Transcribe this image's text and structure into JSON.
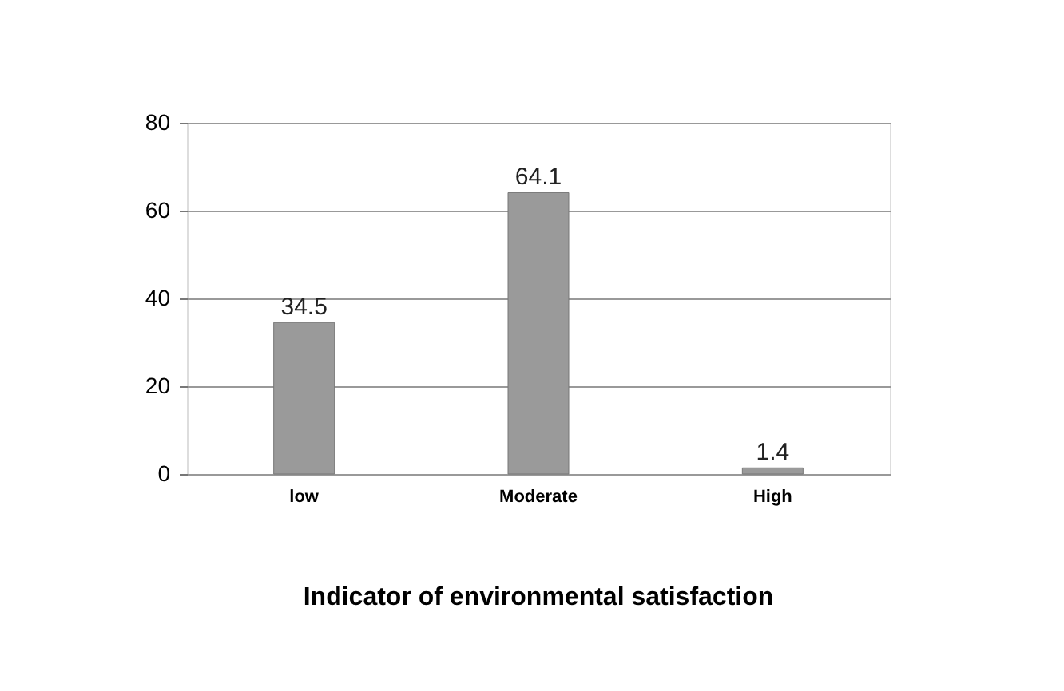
{
  "chart_data": {
    "type": "bar",
    "title": "Indicator of environmental satisfaction",
    "categories": [
      "low",
      "Moderate",
      "High"
    ],
    "values": [
      34.5,
      64.1,
      1.4
    ],
    "color": "#9a9a9a",
    "ylim": [
      0,
      80
    ],
    "yticks": [
      0,
      20,
      40,
      60,
      80
    ],
    "grid": "y",
    "data_labels": true
  }
}
